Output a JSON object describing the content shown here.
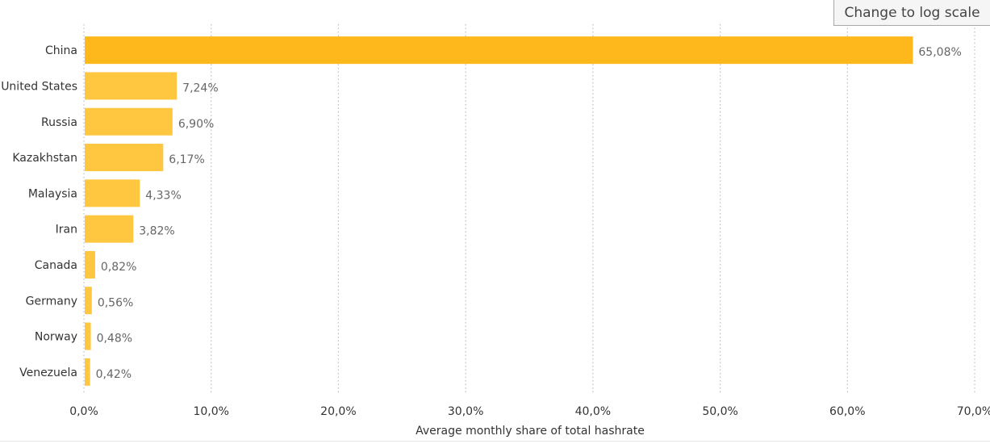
{
  "controls": {
    "log_scale_button": "Change to log scale"
  },
  "chart_data": {
    "type": "bar",
    "orientation": "horizontal",
    "categories": [
      "China",
      "United States",
      "Russia",
      "Kazakhstan",
      "Malaysia",
      "Iran",
      "Canada",
      "Germany",
      "Norway",
      "Venezuela"
    ],
    "values": [
      65.08,
      7.24,
      6.9,
      6.17,
      4.33,
      3.82,
      0.82,
      0.56,
      0.48,
      0.42
    ],
    "value_labels": [
      "65,08%",
      "7,24%",
      "6,90%",
      "6,17%",
      "4,33%",
      "3,82%",
      "0,82%",
      "0,56%",
      "0,48%",
      "0,42%"
    ],
    "xlabel": "Average monthly share of total hashrate",
    "xlim": [
      0,
      70
    ],
    "xticks": [
      0,
      10,
      20,
      30,
      40,
      50,
      60,
      70
    ],
    "xtick_labels": [
      "0,0%",
      "10,0%",
      "20,0%",
      "30,0%",
      "40,0%",
      "50,0%",
      "60,0%",
      "70,0%"
    ],
    "grid": "vertical dotted",
    "colors": {
      "top_bar": "#ffb81c",
      "bars": "#ffc640",
      "grid": "#bdbdbd",
      "value_label": "#666666",
      "category_label": "#333333"
    }
  }
}
